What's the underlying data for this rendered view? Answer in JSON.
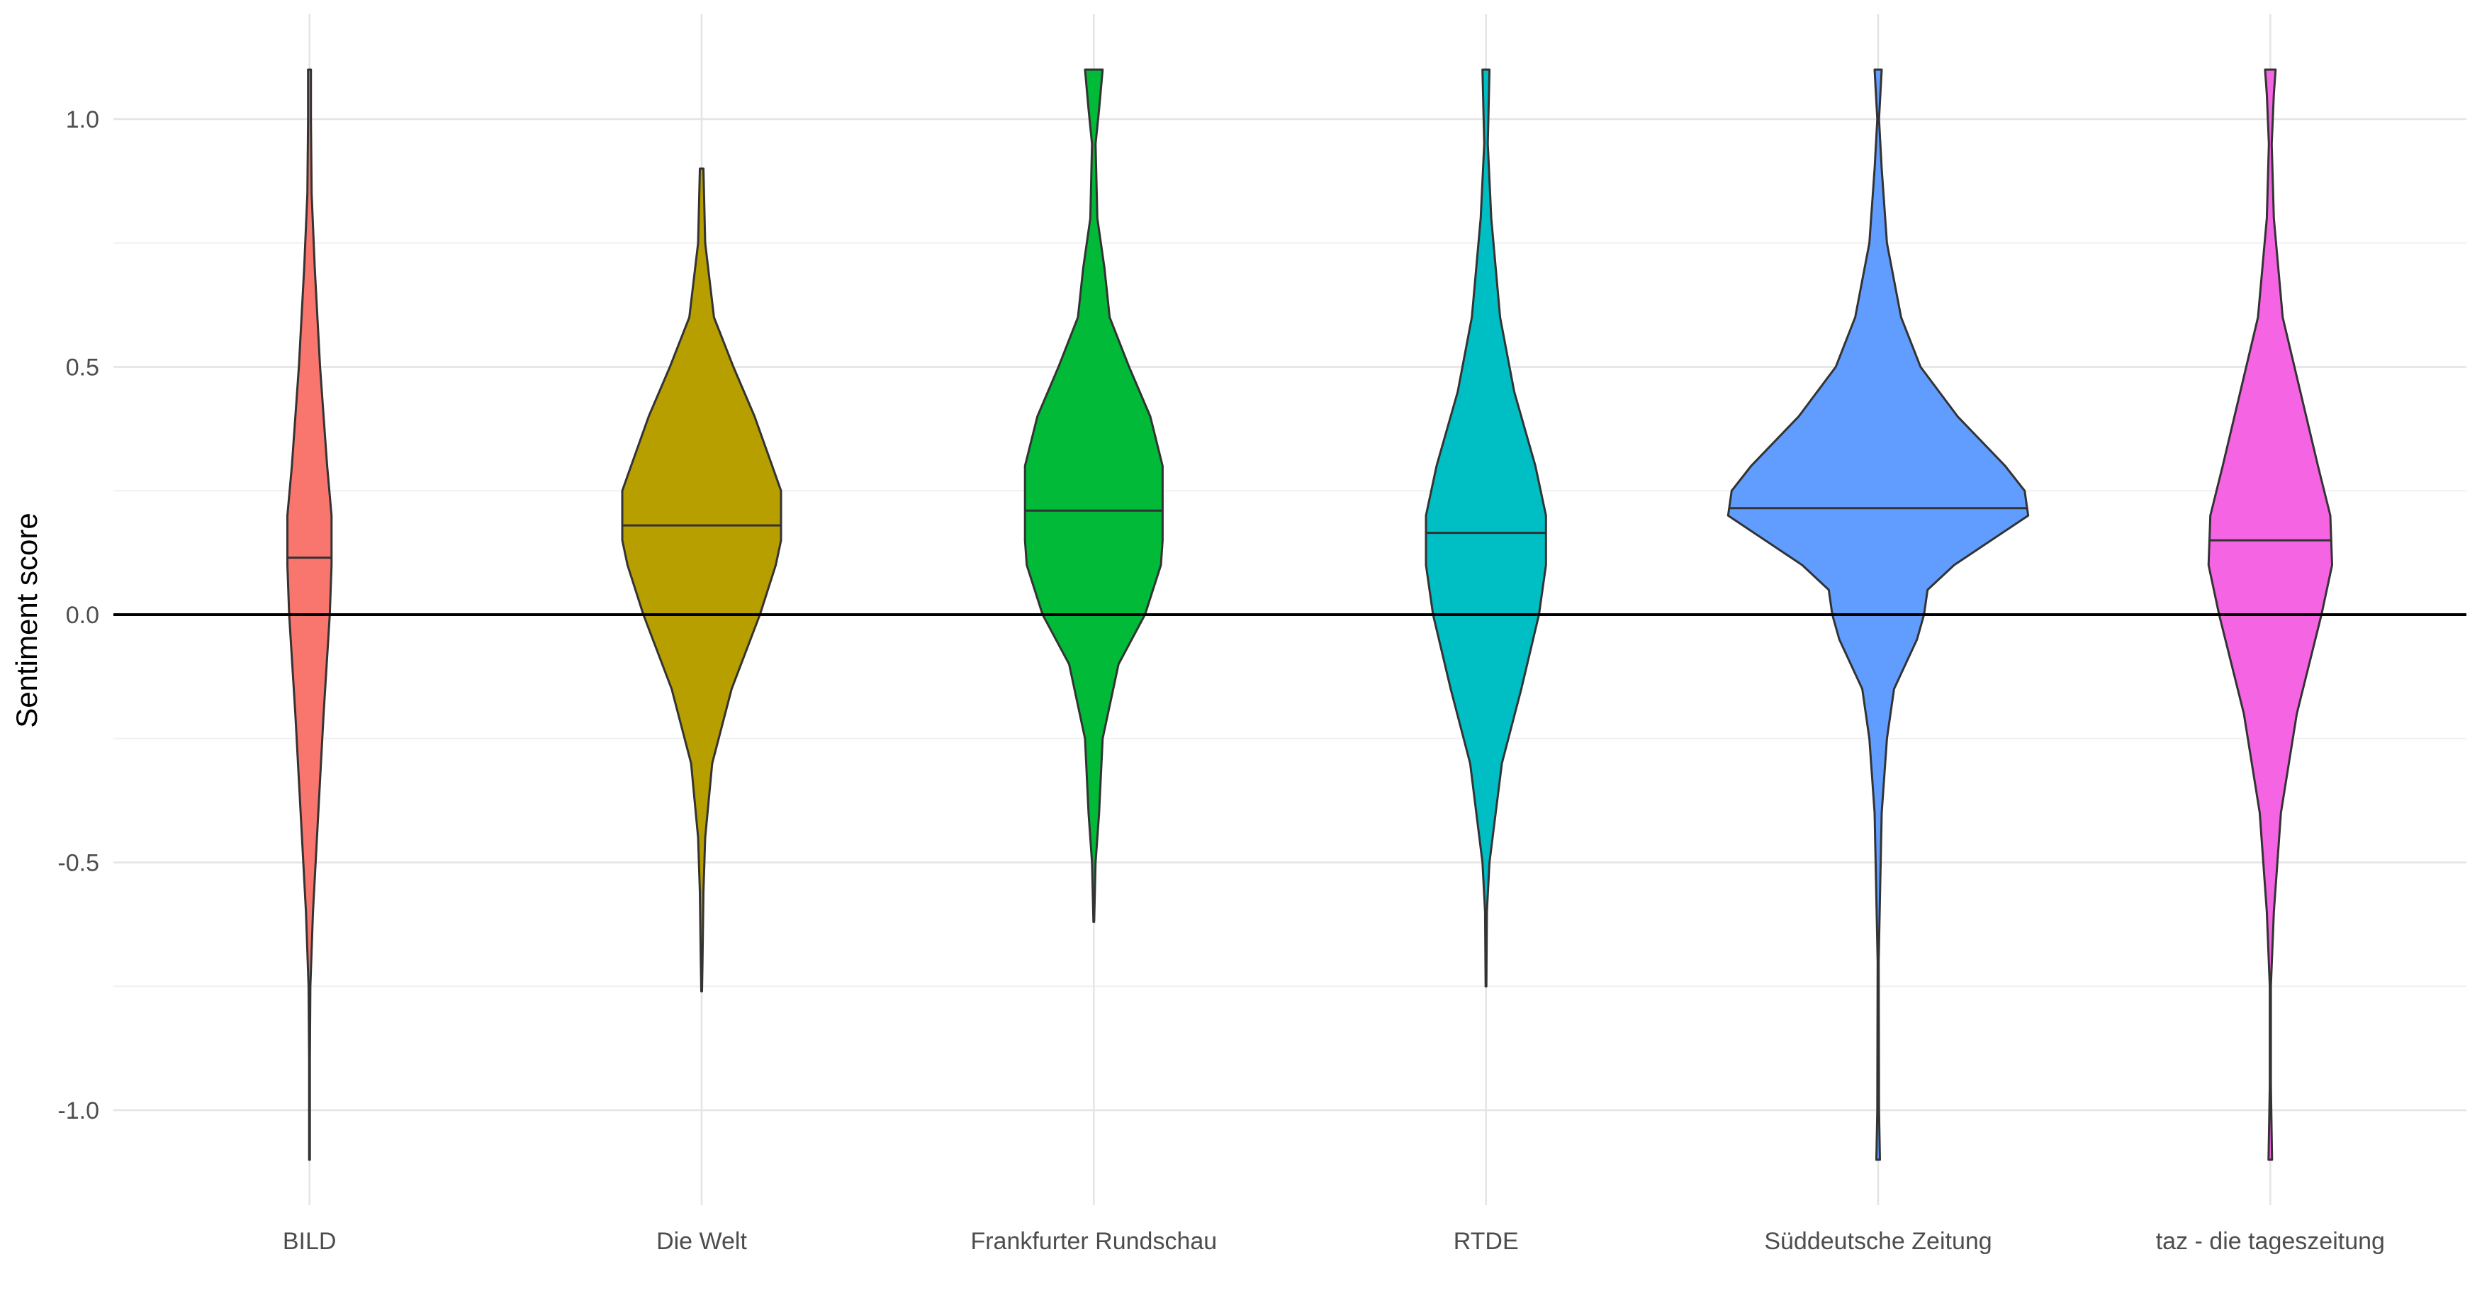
{
  "chart_data": {
    "type": "violin",
    "title": "",
    "xlabel": "",
    "ylabel": "Sentiment score",
    "ylim": [
      -1.2,
      1.2
    ],
    "yticks": [
      -1.0,
      -0.5,
      0.0,
      0.5,
      1.0
    ],
    "ytick_labels": [
      "-1.0",
      "-0.5",
      "0.0",
      "0.5",
      "1.0"
    ],
    "hline": 0,
    "grid": true,
    "legend": "none",
    "categories": [
      "BILD",
      "Die Welt",
      "Frankfurter Rundschau",
      "RTDE",
      "Süddeutsche Zeitung",
      "taz - die tageszeitung"
    ],
    "series": [
      {
        "category": "BILD",
        "color": "#F8766D",
        "median": 0.115,
        "profile": [
          [
            -1.1,
            0.002
          ],
          [
            -0.9,
            0.002
          ],
          [
            -0.75,
            0.005
          ],
          [
            -0.6,
            0.02
          ],
          [
            -0.4,
            0.05
          ],
          [
            -0.2,
            0.08
          ],
          [
            0.0,
            0.115
          ],
          [
            0.1,
            0.125
          ],
          [
            0.2,
            0.125
          ],
          [
            0.3,
            0.1
          ],
          [
            0.5,
            0.06
          ],
          [
            0.7,
            0.03
          ],
          [
            0.85,
            0.012
          ],
          [
            1.0,
            0.008
          ],
          [
            1.1,
            0.008
          ]
        ]
      },
      {
        "category": "Die Welt",
        "color": "#B79F00",
        "median": 0.18,
        "profile": [
          [
            -0.76,
            0.002
          ],
          [
            -0.7,
            0.005
          ],
          [
            -0.56,
            0.01
          ],
          [
            -0.45,
            0.02
          ],
          [
            -0.3,
            0.06
          ],
          [
            -0.15,
            0.17
          ],
          [
            0.0,
            0.33
          ],
          [
            0.1,
            0.42
          ],
          [
            0.15,
            0.45
          ],
          [
            0.25,
            0.45
          ],
          [
            0.3,
            0.4
          ],
          [
            0.4,
            0.3
          ],
          [
            0.5,
            0.18
          ],
          [
            0.6,
            0.07
          ],
          [
            0.75,
            0.02
          ],
          [
            0.9,
            0.01
          ]
        ]
      },
      {
        "category": "Frankfurter Rundschau",
        "color": "#00BA38",
        "median": 0.21,
        "profile": [
          [
            -0.62,
            0.002
          ],
          [
            -0.5,
            0.01
          ],
          [
            -0.4,
            0.03
          ],
          [
            -0.25,
            0.05
          ],
          [
            -0.1,
            0.14
          ],
          [
            0.0,
            0.29
          ],
          [
            0.1,
            0.38
          ],
          [
            0.15,
            0.39
          ],
          [
            0.3,
            0.39
          ],
          [
            0.4,
            0.32
          ],
          [
            0.5,
            0.2
          ],
          [
            0.6,
            0.09
          ],
          [
            0.7,
            0.06
          ],
          [
            0.8,
            0.02
          ],
          [
            0.95,
            0.01
          ],
          [
            1.02,
            0.03
          ],
          [
            1.1,
            0.05
          ]
        ]
      },
      {
        "category": "RTDE",
        "color": "#00BFC4",
        "median": 0.165,
        "profile": [
          [
            -0.75,
            0.002
          ],
          [
            -0.6,
            0.005
          ],
          [
            -0.5,
            0.02
          ],
          [
            -0.3,
            0.09
          ],
          [
            -0.15,
            0.2
          ],
          [
            0.0,
            0.3
          ],
          [
            0.1,
            0.34
          ],
          [
            0.2,
            0.34
          ],
          [
            0.3,
            0.28
          ],
          [
            0.45,
            0.16
          ],
          [
            0.6,
            0.08
          ],
          [
            0.8,
            0.03
          ],
          [
            0.95,
            0.01
          ],
          [
            1.1,
            0.02
          ]
        ]
      },
      {
        "category": "Süddeutsche Zeitung",
        "color": "#619CFF",
        "median": 0.215,
        "profile": [
          [
            -1.1,
            0.01
          ],
          [
            -1.0,
            0.005
          ],
          [
            -0.7,
            0.003
          ],
          [
            -0.4,
            0.02
          ],
          [
            -0.25,
            0.05
          ],
          [
            -0.15,
            0.09
          ],
          [
            -0.05,
            0.22
          ],
          [
            0.0,
            0.26
          ],
          [
            0.05,
            0.28
          ],
          [
            0.1,
            0.43
          ],
          [
            0.2,
            0.85
          ],
          [
            0.25,
            0.83
          ],
          [
            0.3,
            0.72
          ],
          [
            0.4,
            0.45
          ],
          [
            0.5,
            0.24
          ],
          [
            0.6,
            0.13
          ],
          [
            0.75,
            0.05
          ],
          [
            0.9,
            0.02
          ],
          [
            1.0,
            0.005
          ],
          [
            1.1,
            0.02
          ]
        ]
      },
      {
        "category": "taz - die tageszeitung",
        "color": "#F564E3",
        "median": 0.15,
        "profile": [
          [
            -1.1,
            0.01
          ],
          [
            -0.95,
            0.003
          ],
          [
            -0.75,
            0.003
          ],
          [
            -0.6,
            0.02
          ],
          [
            -0.4,
            0.06
          ],
          [
            -0.2,
            0.15
          ],
          [
            0.0,
            0.29
          ],
          [
            0.1,
            0.35
          ],
          [
            0.2,
            0.34
          ],
          [
            0.3,
            0.27
          ],
          [
            0.45,
            0.17
          ],
          [
            0.6,
            0.07
          ],
          [
            0.8,
            0.02
          ],
          [
            0.95,
            0.008
          ],
          [
            1.05,
            0.02
          ],
          [
            1.1,
            0.03
          ]
        ]
      }
    ]
  }
}
